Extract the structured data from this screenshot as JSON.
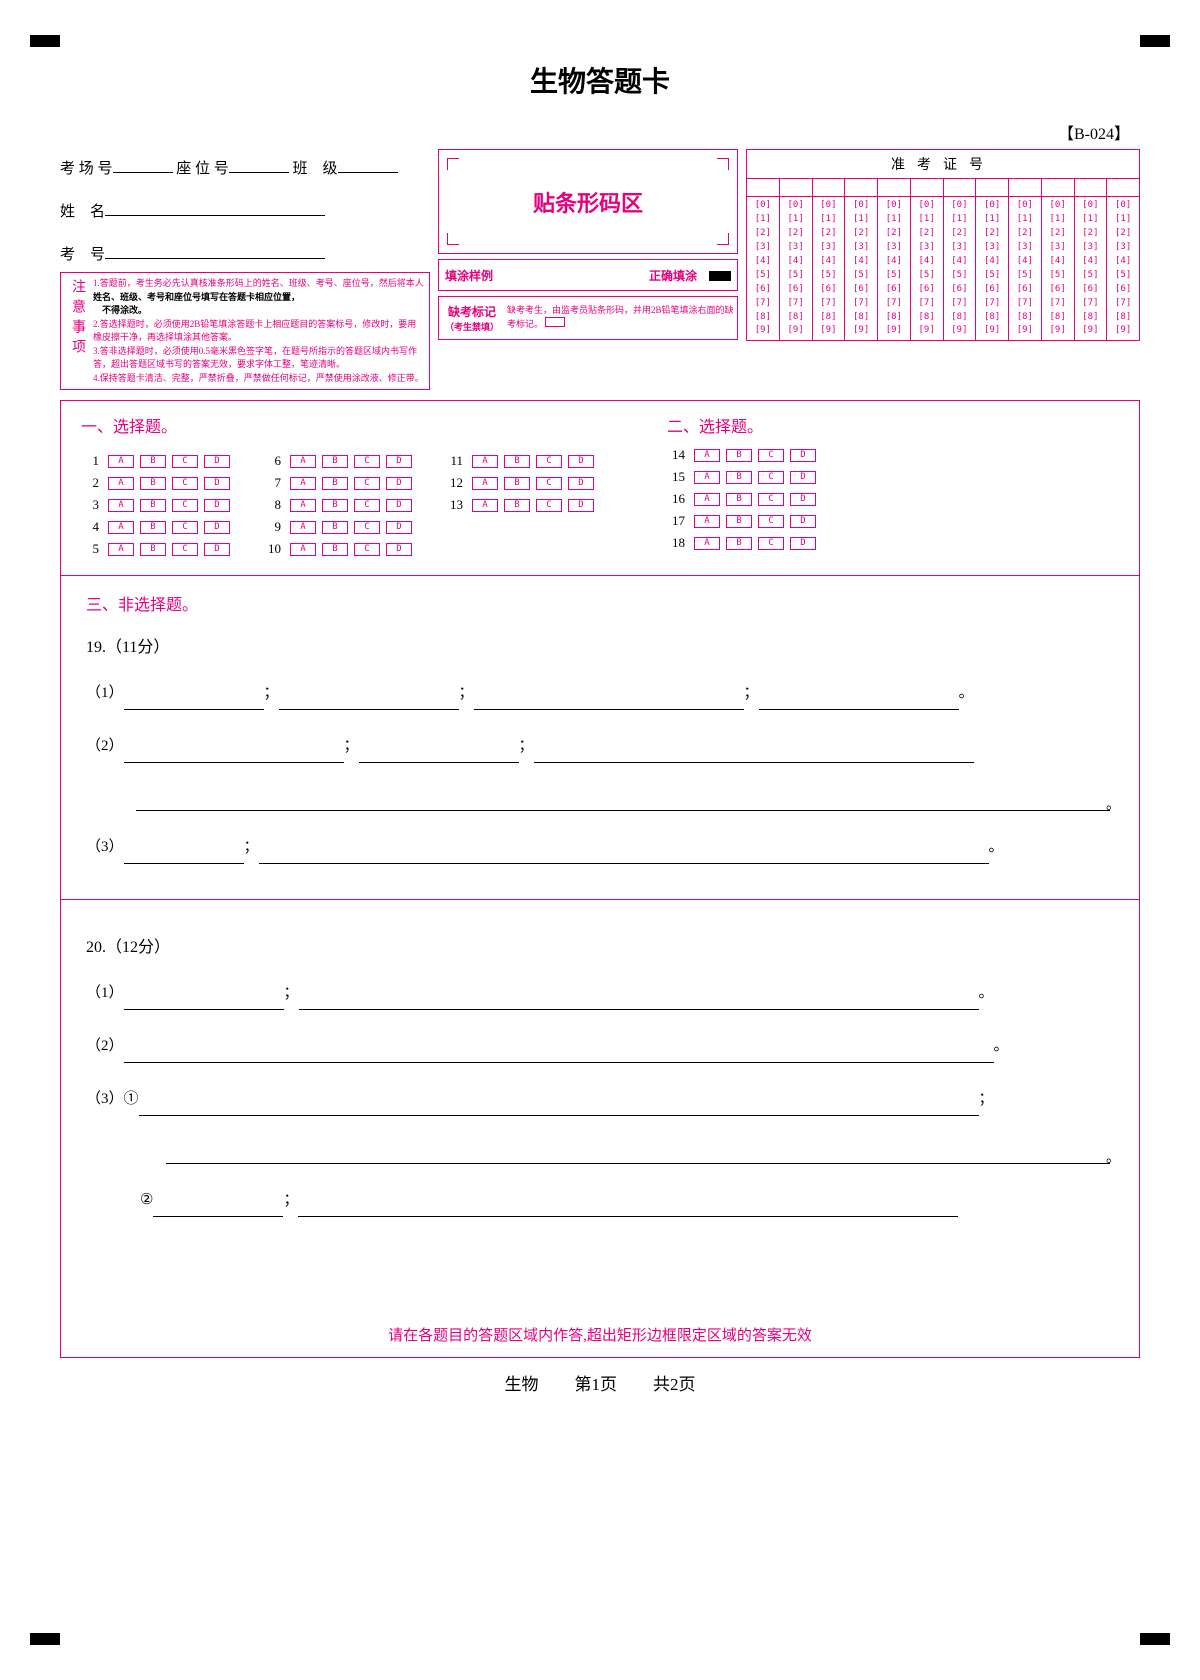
{
  "title": "生物答题卡",
  "sheet_id": "【B-024】",
  "fields": {
    "exam_room": "考 场 号",
    "seat": "座 位 号",
    "class": "班　级",
    "name": "姓　名",
    "exam_no": "考　号"
  },
  "barcode_label": "贴条形码区",
  "notice": {
    "label": "注意事项",
    "lines": [
      "1.答题前，考生务必先认真核准条形码上的姓名、班级、考号、座位号，然后将本人",
      "　不得涂改。",
      "2.答选择题时，必须使用2B铅笔填涂答题卡上相应题目的答案标号，修改时，要用橡皮擦干净，再选择填涂其他答案。",
      "3.答非选择题时，必须使用0.5毫米黑色签字笔，在题号所指示的答题区域内书写作答，超出答题区域书写的答案无效，要求字体工整，笔迹清晰。",
      "4.保持答题卡清洁、完整，严禁折叠，严禁做任何标记，严禁使用涂改液、修正带。"
    ],
    "bold_part": "姓名、班级、考号和座位号填写在答题卡相应位置，"
  },
  "fill_example": {
    "label1": "填涂样例",
    "label2": "正确填涂"
  },
  "absent": {
    "label": "缺考标记",
    "sublabel": "（考生禁填）",
    "text": "缺考考生，由监考员贴条形码，并用2B铅笔填涂右面的缺考标记。"
  },
  "id_header": "准考证号",
  "id_digits": [
    "0",
    "1",
    "2",
    "3",
    "4",
    "5",
    "6",
    "7",
    "8",
    "9"
  ],
  "id_col_count": 12,
  "section1": {
    "title": "一、选择题。",
    "groups": [
      {
        "start": 1,
        "end": 5
      },
      {
        "start": 6,
        "end": 10
      },
      {
        "start": 11,
        "end": 13
      }
    ],
    "options": [
      "A",
      "B",
      "C",
      "D"
    ]
  },
  "section2": {
    "title": "二、选择题。",
    "start": 14,
    "end": 18,
    "options": [
      "A",
      "B",
      "C",
      "D"
    ]
  },
  "section3": {
    "title": "三、非选择题。",
    "q19": {
      "label": "19.（11分）"
    },
    "q20": {
      "label": "20.（12分）"
    }
  },
  "footer_warning": "请在各题目的答题区域内作答,超出矩形边框限定区域的答案无效",
  "page_footer": {
    "subject": "生物",
    "page": "第1页",
    "total": "共2页"
  },
  "colors": {
    "accent": "#e6007e"
  }
}
